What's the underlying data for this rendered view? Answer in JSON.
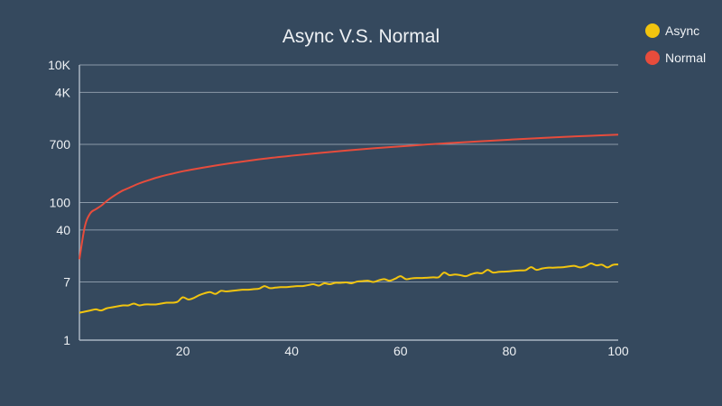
{
  "chart_data": {
    "type": "line",
    "title": "Async V.S. Normal",
    "xlabel": "",
    "ylabel": "",
    "xlim": [
      1,
      100
    ],
    "x_ticks": [
      20,
      40,
      60,
      80,
      100
    ],
    "y_scale": "log",
    "ylim": [
      1,
      10000
    ],
    "y_ticks": [
      {
        "label": "1",
        "value": 1
      },
      {
        "label": "7",
        "value": 7
      },
      {
        "label": "40",
        "value": 40
      },
      {
        "label": "100",
        "value": 100
      },
      {
        "label": "700",
        "value": 700
      },
      {
        "label": "4K",
        "value": 4000
      },
      {
        "label": "10K",
        "value": 10000
      }
    ],
    "grid": true,
    "legend_position": "top-right",
    "series": [
      {
        "name": "Async",
        "color": "#f1c40f",
        "x": [
          1,
          2,
          3,
          4,
          5,
          6,
          7,
          8,
          9,
          10,
          11,
          12,
          13,
          14,
          15,
          16,
          17,
          18,
          19,
          20,
          21,
          22,
          23,
          24,
          25,
          26,
          27,
          28,
          29,
          30,
          31,
          32,
          33,
          34,
          35,
          36,
          37,
          38,
          39,
          40,
          41,
          42,
          43,
          44,
          45,
          46,
          47,
          48,
          49,
          50,
          51,
          52,
          53,
          54,
          55,
          56,
          57,
          58,
          59,
          60,
          61,
          62,
          63,
          64,
          65,
          66,
          67,
          68,
          69,
          70,
          71,
          72,
          73,
          74,
          75,
          76,
          77,
          78,
          79,
          80,
          81,
          82,
          83,
          84,
          85,
          86,
          87,
          88,
          89,
          90,
          91,
          92,
          93,
          94,
          95,
          96,
          97,
          98,
          99,
          100
        ],
        "values": [
          2.5,
          2.6,
          2.7,
          2.8,
          2.7,
          2.9,
          3.0,
          3.1,
          3.2,
          3.2,
          3.4,
          3.2,
          3.3,
          3.3,
          3.3,
          3.4,
          3.5,
          3.5,
          3.6,
          4.2,
          3.9,
          4.1,
          4.5,
          4.8,
          5.0,
          4.7,
          5.2,
          5.1,
          5.2,
          5.3,
          5.4,
          5.4,
          5.5,
          5.6,
          6.1,
          5.7,
          5.8,
          5.9,
          5.9,
          6.0,
          6.1,
          6.1,
          6.3,
          6.5,
          6.2,
          6.7,
          6.5,
          6.8,
          6.8,
          6.9,
          6.7,
          7.1,
          7.2,
          7.3,
          7.0,
          7.4,
          7.7,
          7.3,
          7.8,
          8.5,
          7.7,
          7.9,
          8.0,
          8.0,
          8.1,
          8.2,
          8.2,
          9.6,
          8.8,
          9.0,
          8.8,
          8.5,
          9.1,
          9.5,
          9.4,
          10.5,
          9.6,
          9.8,
          9.9,
          10.0,
          10.2,
          10.3,
          10.4,
          11.5,
          10.5,
          11.0,
          11.3,
          11.3,
          11.4,
          11.5,
          11.8,
          12.0,
          11.4,
          11.9,
          13.0,
          12.2,
          12.5,
          11.4,
          12.4,
          12.6
        ]
      },
      {
        "name": "Normal",
        "color": "#e74c3c",
        "x": [
          1,
          2,
          3,
          4,
          5,
          6,
          7,
          8,
          9,
          10,
          12,
          14,
          16,
          18,
          20,
          25,
          30,
          35,
          40,
          45,
          50,
          55,
          60,
          65,
          70,
          75,
          80,
          85,
          90,
          95,
          100
        ],
        "values": [
          15,
          45,
          70,
          80,
          90,
          105,
          120,
          135,
          150,
          162,
          190,
          215,
          240,
          262,
          285,
          335,
          385,
          435,
          480,
          525,
          570,
          615,
          655,
          700,
          740,
          780,
          820,
          860,
          900,
          935,
          970
        ]
      }
    ]
  }
}
